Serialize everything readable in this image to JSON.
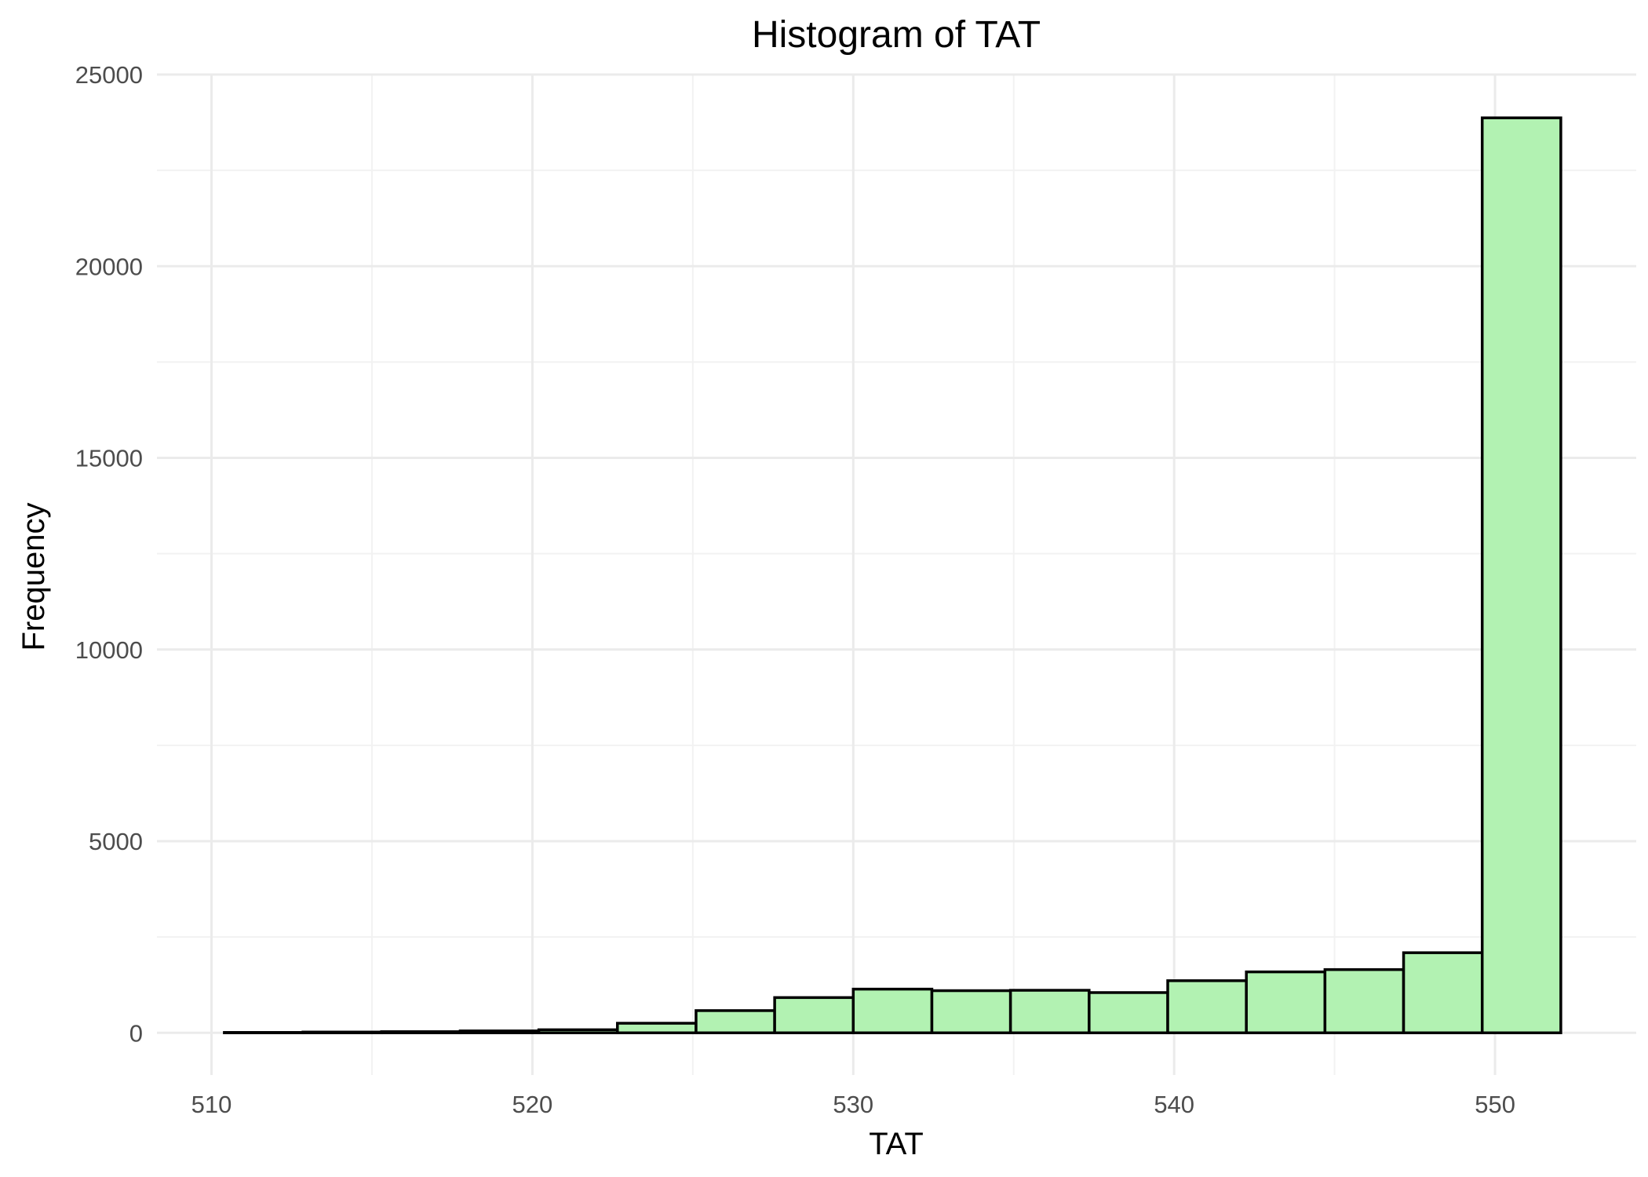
{
  "chart_data": {
    "type": "bar",
    "title": "Histogram of TAT",
    "xlabel": "TAT",
    "ylabel": "Frequency",
    "xlim": [
      508.3,
      554.4
    ],
    "ylim": [
      -1100,
      25000
    ],
    "x_ticks": [
      510,
      520,
      530,
      540,
      550
    ],
    "x_minor_ticks": [
      515,
      525,
      535,
      545
    ],
    "y_ticks": [
      0,
      5000,
      10000,
      15000,
      20000,
      25000
    ],
    "y_minor_ticks": [
      2500,
      7500,
      12500,
      17500,
      22500
    ],
    "grid": true,
    "bin_edges": [
      510.4,
      512.85,
      515.3,
      517.75,
      520.2,
      522.65,
      525.1,
      527.55,
      530.0,
      532.45,
      534.9,
      537.35,
      539.8,
      542.25,
      544.7,
      547.15,
      549.6,
      552.05
    ],
    "values": [
      10,
      20,
      30,
      50,
      80,
      250,
      580,
      920,
      1140,
      1100,
      1110,
      1050,
      1360,
      1590,
      1650,
      2090,
      23870
    ],
    "bar_fill": "#b2f2b2",
    "bar_stroke": "#000000"
  }
}
